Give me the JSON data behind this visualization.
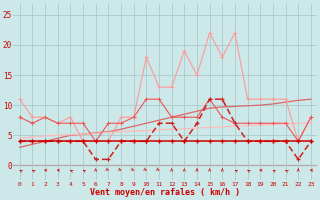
{
  "x": [
    0,
    1,
    2,
    3,
    4,
    5,
    6,
    7,
    8,
    9,
    10,
    11,
    12,
    13,
    14,
    15,
    16,
    17,
    18,
    19,
    20,
    21,
    22,
    23
  ],
  "series_rafales": [
    11,
    8,
    8,
    7,
    8,
    4,
    4,
    4,
    8,
    8,
    18,
    13,
    13,
    19,
    15,
    22,
    18,
    22,
    11,
    11,
    11,
    11,
    4,
    8
  ],
  "series_vent": [
    4,
    4,
    4,
    4,
    4,
    4,
    1,
    1,
    4,
    4,
    4,
    7,
    7,
    4,
    7,
    11,
    11,
    7,
    4,
    4,
    4,
    4,
    1,
    4
  ],
  "series_flat": [
    4,
    4,
    4,
    4,
    4,
    4,
    4,
    4,
    4,
    4,
    4,
    4,
    4,
    4,
    4,
    4,
    4,
    4,
    4,
    4,
    4,
    4,
    4,
    4
  ],
  "series_medium": [
    8,
    7,
    8,
    7,
    7,
    7,
    4,
    7,
    7,
    8,
    11,
    11,
    8,
    8,
    8,
    11,
    8,
    7,
    7,
    7,
    7,
    7,
    4,
    8
  ],
  "trend_upper": [
    3.0,
    3.5,
    4.0,
    4.5,
    5.0,
    5.2,
    5.4,
    5.6,
    6.0,
    6.5,
    7.0,
    7.5,
    8.0,
    8.5,
    9.0,
    9.5,
    9.7,
    9.8,
    9.9,
    10.0,
    10.2,
    10.5,
    10.8,
    11.0
  ],
  "trend_lower": [
    4.5,
    4.7,
    4.9,
    5.0,
    5.1,
    5.2,
    5.3,
    5.5,
    5.6,
    5.7,
    5.8,
    5.9,
    6.0,
    6.1,
    6.2,
    6.3,
    6.4,
    6.5,
    6.6,
    6.7,
    6.8,
    6.9,
    7.0,
    7.0
  ],
  "wind_angles": [
    225,
    225,
    270,
    270,
    225,
    225,
    180,
    45,
    45,
    45,
    45,
    45,
    180,
    180,
    180,
    180,
    180,
    225,
    225,
    270,
    225,
    225,
    180,
    270
  ],
  "background": "#cce8e8",
  "grid_color": "#aacccc",
  "color_dark_red": "#cc0000",
  "color_dashed_red": "#cc2222",
  "color_medium_red": "#ee5555",
  "color_light_red": "#ff9999",
  "color_trend_dark": "#dd6666",
  "color_trend_light": "#ffbbbb",
  "xlabel": "Vent moyen/en rafales ( km/h )",
  "ytick_labels": [
    "0",
    "5",
    "10",
    "15",
    "20",
    "25"
  ],
  "ytick_vals": [
    0,
    5,
    10,
    15,
    20,
    25
  ],
  "ylim": [
    -2.5,
    27
  ],
  "xlim": [
    -0.5,
    23.5
  ]
}
